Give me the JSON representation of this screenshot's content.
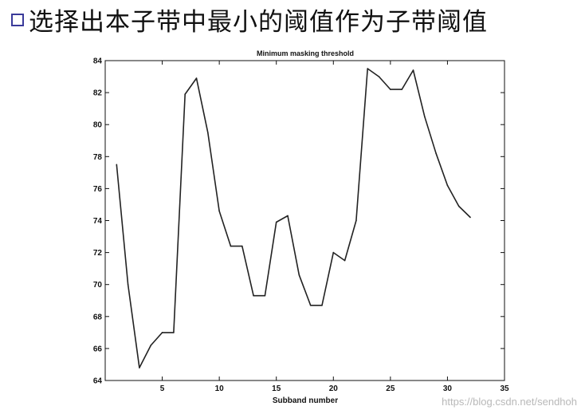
{
  "slide": {
    "bullet_icon": "hollow-square-bullet",
    "title": "选择出本子带中最小的阈值作为子带阈值"
  },
  "chart_data": {
    "type": "line",
    "title": "Minimum masking threshold",
    "xlabel": "Subband number",
    "ylabel": "",
    "xlim": [
      0,
      35
    ],
    "ylim": [
      64,
      84
    ],
    "xticks": [
      5,
      10,
      15,
      20,
      25,
      30,
      35
    ],
    "yticks": [
      64,
      66,
      68,
      70,
      72,
      74,
      76,
      78,
      80,
      82,
      84
    ],
    "grid": false,
    "line_color": "#222222",
    "series": [
      {
        "x": [
          1,
          2,
          3,
          4,
          5,
          6,
          7,
          8,
          9,
          10,
          11,
          12,
          13,
          14,
          15,
          16,
          17,
          18,
          19,
          20,
          21,
          22,
          23,
          24,
          25,
          26,
          27,
          28,
          29,
          30,
          31,
          32
        ],
        "y": [
          77.5,
          70.0,
          64.8,
          66.2,
          67.0,
          67.0,
          81.9,
          82.9,
          79.5,
          74.6,
          72.4,
          72.4,
          69.3,
          69.3,
          73.9,
          74.3,
          70.6,
          68.7,
          68.7,
          72.0,
          71.5,
          74.0,
          83.5,
          83.0,
          82.2,
          82.2,
          83.4,
          80.5,
          78.2,
          76.2,
          74.9,
          74.2
        ]
      }
    ]
  },
  "watermark": "https://blog.csdn.net/sendhoh"
}
